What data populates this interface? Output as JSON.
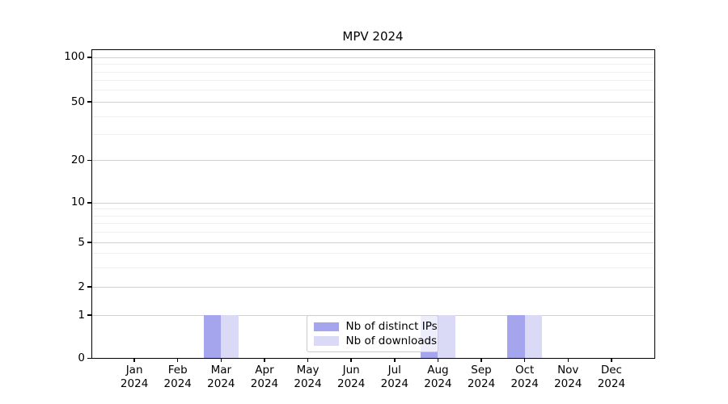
{
  "title": "MPV 2024",
  "colors": {
    "distinct_ips_bar": "#a5a5ed",
    "downloads_bar": "#dadaf7",
    "grid_major": "#d0d0d0",
    "grid_minor": "#efefef",
    "spine": "#000000",
    "legend_border": "#cccccc",
    "legend_background": "rgba(255,255,255,0.8)",
    "text": "#000000"
  },
  "legend": {
    "items": [
      {
        "label": "Nb of distinct IPs",
        "color": "#a5a5ed"
      },
      {
        "label": "Nb of downloads",
        "color": "#dadaf7"
      }
    ],
    "position": "lower center"
  },
  "chart_data": {
    "type": "bar",
    "title": "MPV 2024",
    "categories": [
      "Jan 2024",
      "Feb 2024",
      "Mar 2024",
      "Apr 2024",
      "May 2024",
      "Jun 2024",
      "Jul 2024",
      "Aug 2024",
      "Sep 2024",
      "Oct 2024",
      "Nov 2024",
      "Dec 2024"
    ],
    "x_tick_line1": [
      "Jan",
      "Feb",
      "Mar",
      "Apr",
      "May",
      "Jun",
      "Jul",
      "Aug",
      "Sep",
      "Oct",
      "Nov",
      "Dec"
    ],
    "x_tick_line2": "2024",
    "series": [
      {
        "name": "Nb of distinct IPs",
        "color": "#a5a5ed",
        "values": [
          0,
          0,
          1,
          0,
          0,
          0,
          0,
          1,
          0,
          1,
          0,
          0
        ]
      },
      {
        "name": "Nb of downloads",
        "color": "#dadaf7",
        "values": [
          0,
          0,
          1,
          0,
          0,
          0,
          0,
          1,
          0,
          1,
          0,
          0
        ]
      }
    ],
    "xlabel": "",
    "ylabel": "",
    "y_axis": {
      "ticks": [
        0,
        1,
        2,
        5,
        10,
        20,
        50,
        100
      ],
      "minor_ticks": [
        3,
        4,
        6,
        7,
        8,
        9,
        30,
        40,
        60,
        70,
        80,
        90
      ],
      "scale": "log-like (linear 0-1, logarithmic above)",
      "range_top_value": 110
    },
    "grid": {
      "horizontal_major": true,
      "horizontal_minor": true,
      "vertical": false
    },
    "legend_position": "lower center"
  }
}
